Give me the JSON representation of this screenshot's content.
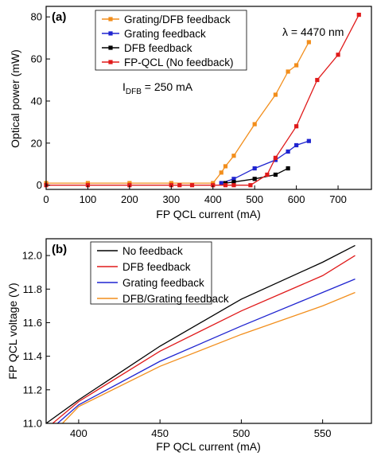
{
  "chart_data": [
    {
      "type": "line",
      "panel_label": "(a)",
      "xlabel": "FP QCL current (mA)",
      "ylabel": "Optical power (mW)",
      "xlim": [
        0,
        780
      ],
      "ylim": [
        -2,
        85
      ],
      "xticks": [
        "0",
        "100",
        "200",
        "300",
        "400",
        "500",
        "600",
        "700"
      ],
      "yticks": [
        "0",
        "20",
        "40",
        "60",
        "80"
      ],
      "annotations": {
        "wavelength": "λ = 4470 nm",
        "idfb_main": "I",
        "idfb_sub": "DFB",
        "idfb_value": " = 250 mA"
      },
      "legend_position": "top-left",
      "series": [
        {
          "name": "Grating/DFB feedback",
          "color": "#f28e1c",
          "x": [
            0,
            100,
            200,
            300,
            400,
            420,
            430,
            450,
            500,
            550,
            580,
            600,
            630
          ],
          "y": [
            1,
            1,
            1,
            1,
            1,
            6,
            9,
            14,
            29,
            43,
            54,
            57,
            68
          ]
        },
        {
          "name": "Grating feedback",
          "color": "#1f24d0",
          "x": [
            420,
            450,
            500,
            550,
            580,
            600,
            630
          ],
          "y": [
            1,
            3,
            8,
            12,
            16,
            19,
            21
          ]
        },
        {
          "name": "DFB feedback",
          "color": "#000000",
          "x": [
            430,
            450,
            500,
            550,
            580
          ],
          "y": [
            1,
            1.5,
            3,
            5,
            8
          ]
        },
        {
          "name": "FP-QCL (No feedback)",
          "color": "#e01a1a",
          "x": [
            0,
            100,
            200,
            300,
            320,
            350,
            400,
            430,
            450,
            490,
            530,
            550,
            600,
            650,
            700,
            750
          ],
          "y": [
            0,
            0,
            0,
            0,
            0,
            0,
            0,
            0,
            0,
            0,
            5,
            13,
            28,
            50,
            62,
            81
          ]
        }
      ]
    },
    {
      "type": "line",
      "panel_label": "(b)",
      "xlabel": "FP QCL current (mA)",
      "ylabel": "FP QCL voltage (V)",
      "xlim": [
        380,
        580
      ],
      "ylim": [
        11.0,
        12.1
      ],
      "xticks": [
        "400",
        "450",
        "500",
        "550"
      ],
      "yticks": [
        "11.0",
        "11.2",
        "11.4",
        "11.6",
        "11.8",
        "12.0"
      ],
      "legend_position": "top-left",
      "series": [
        {
          "name": "No feedback",
          "color": "#000000",
          "x": [
            380,
            400,
            450,
            500,
            550,
            570
          ],
          "y": [
            11.0,
            11.14,
            11.46,
            11.74,
            11.96,
            12.06
          ]
        },
        {
          "name": "DFB feedback",
          "color": "#e01a1a",
          "x": [
            384,
            400,
            450,
            500,
            550,
            570
          ],
          "y": [
            11.0,
            11.13,
            11.43,
            11.67,
            11.88,
            12.0
          ]
        },
        {
          "name": "Grating feedback",
          "color": "#1f24d0",
          "x": [
            387,
            400,
            450,
            500,
            550,
            570
          ],
          "y": [
            11.0,
            11.11,
            11.37,
            11.58,
            11.78,
            11.86
          ]
        },
        {
          "name": "DFB/Grating feedback",
          "color": "#f28e1c",
          "x": [
            390,
            400,
            450,
            500,
            550,
            570
          ],
          "y": [
            11.0,
            11.1,
            11.34,
            11.53,
            11.7,
            11.78
          ]
        }
      ]
    }
  ]
}
